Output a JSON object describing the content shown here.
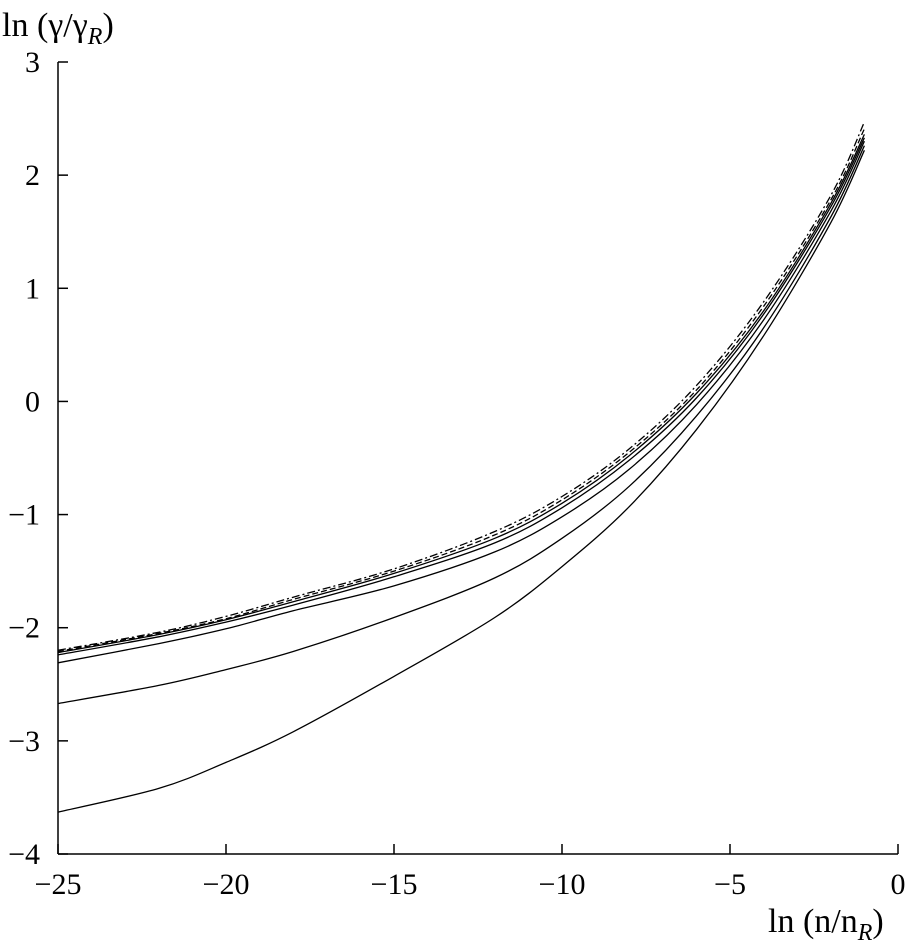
{
  "chart_data": {
    "type": "line",
    "title": "",
    "ylabel": {
      "main": "ln (γ/γ",
      "sub": "R",
      "close": ")"
    },
    "xlabel": {
      "main": "ln (n/n",
      "sub": "R",
      "close": ")"
    },
    "xlim": [
      -25,
      0
    ],
    "ylim": [
      -4,
      3
    ],
    "x_ticks": [
      {
        "value": -25,
        "label": "−25"
      },
      {
        "value": -20,
        "label": "−20"
      },
      {
        "value": -15,
        "label": "−15"
      },
      {
        "value": -10,
        "label": "−10"
      },
      {
        "value": -5,
        "label": "−5"
      },
      {
        "value": 0,
        "label": "0"
      }
    ],
    "y_ticks": [
      {
        "value": 3,
        "label": "3"
      },
      {
        "value": 2,
        "label": "2"
      },
      {
        "value": 1,
        "label": "1"
      },
      {
        "value": 0,
        "label": "0"
      },
      {
        "value": -1,
        "label": "−1"
      },
      {
        "value": -2,
        "label": "−2"
      },
      {
        "value": -3,
        "label": "−3"
      },
      {
        "value": -4,
        "label": "−4"
      }
    ],
    "grid": false,
    "legend": "none",
    "series": [
      {
        "style": "solid",
        "points": [
          [
            -25,
            -3.63
          ],
          [
            -22,
            -3.42
          ],
          [
            -20,
            -3.19
          ],
          [
            -18,
            -2.92
          ],
          [
            -15,
            -2.43
          ],
          [
            -12,
            -1.91
          ],
          [
            -10,
            -1.46
          ],
          [
            -8,
            -0.93
          ],
          [
            -6,
            -0.25
          ],
          [
            -4,
            0.58
          ],
          [
            -2,
            1.58
          ],
          [
            -1,
            2.22
          ]
        ]
      },
      {
        "style": "solid",
        "points": [
          [
            -25,
            -2.67
          ],
          [
            -22,
            -2.51
          ],
          [
            -20,
            -2.37
          ],
          [
            -18,
            -2.21
          ],
          [
            -15,
            -1.91
          ],
          [
            -12,
            -1.56
          ],
          [
            -10,
            -1.21
          ],
          [
            -8,
            -0.75
          ],
          [
            -6,
            -0.13
          ],
          [
            -4,
            0.65
          ],
          [
            -2,
            1.63
          ],
          [
            -1,
            2.26
          ]
        ]
      },
      {
        "style": "solid",
        "points": [
          [
            -25,
            -2.31
          ],
          [
            -22,
            -2.14
          ],
          [
            -20,
            -2.01
          ],
          [
            -18,
            -1.85
          ],
          [
            -15,
            -1.63
          ],
          [
            -12,
            -1.33
          ],
          [
            -10,
            -1.02
          ],
          [
            -8,
            -0.6
          ],
          [
            -6,
            -0.03
          ],
          [
            -4,
            0.72
          ],
          [
            -2,
            1.68
          ],
          [
            -1,
            2.3
          ]
        ]
      },
      {
        "style": "solid",
        "points": [
          [
            -25,
            -2.24
          ],
          [
            -22,
            -2.08
          ],
          [
            -20,
            -1.95
          ],
          [
            -18,
            -1.8
          ],
          [
            -15,
            -1.55
          ],
          [
            -12,
            -1.25
          ],
          [
            -10,
            -0.94
          ],
          [
            -8,
            -0.52
          ],
          [
            -6,
            0.03
          ],
          [
            -4,
            0.77
          ],
          [
            -2,
            1.72
          ],
          [
            -1,
            2.33
          ]
        ]
      },
      {
        "style": "solid",
        "points": [
          [
            -25,
            -2.22
          ],
          [
            -22,
            -2.06
          ],
          [
            -20,
            -1.93
          ],
          [
            -18,
            -1.77
          ],
          [
            -15,
            -1.52
          ],
          [
            -12,
            -1.21
          ],
          [
            -10,
            -0.9
          ],
          [
            -8,
            -0.48
          ],
          [
            -6,
            0.07
          ],
          [
            -4,
            0.8
          ],
          [
            -2,
            1.75
          ],
          [
            -1,
            2.36
          ]
        ]
      },
      {
        "style": "dashed",
        "points": [
          [
            -25,
            -2.21
          ],
          [
            -22,
            -2.05
          ],
          [
            -20,
            -1.92
          ],
          [
            -18,
            -1.75
          ],
          [
            -15,
            -1.5
          ],
          [
            -12,
            -1.18
          ],
          [
            -10,
            -0.87
          ],
          [
            -8,
            -0.45
          ],
          [
            -6,
            0.1
          ],
          [
            -4,
            0.84
          ],
          [
            -2,
            1.78
          ],
          [
            -1,
            2.41
          ]
        ]
      },
      {
        "style": "dashdot",
        "points": [
          [
            -25,
            -2.2
          ],
          [
            -22,
            -2.04
          ],
          [
            -20,
            -1.9
          ],
          [
            -18,
            -1.73
          ],
          [
            -15,
            -1.48
          ],
          [
            -12,
            -1.15
          ],
          [
            -10,
            -0.84
          ],
          [
            -8,
            -0.42
          ],
          [
            -6,
            0.14
          ],
          [
            -4,
            0.88
          ],
          [
            -2,
            1.82
          ],
          [
            -1,
            2.47
          ]
        ]
      }
    ]
  }
}
